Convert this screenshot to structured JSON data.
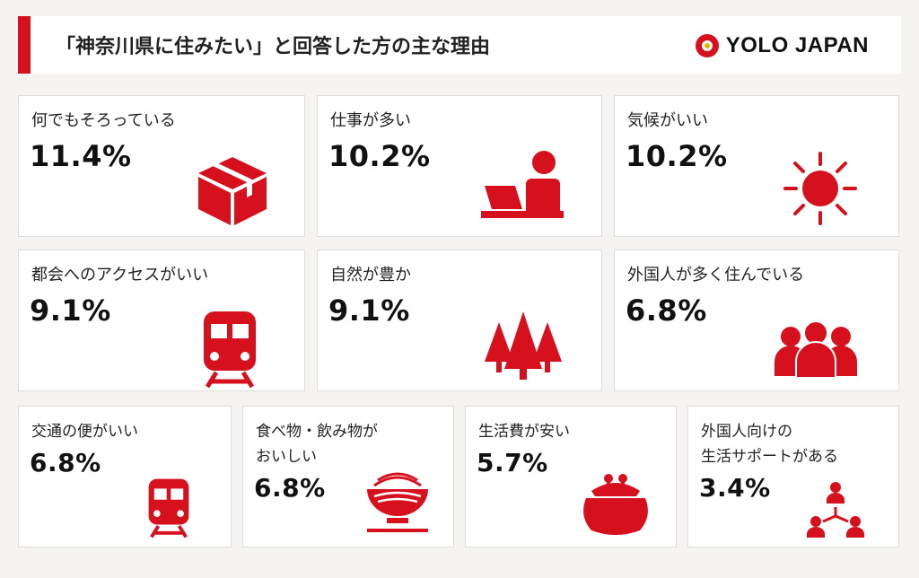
{
  "header": {
    "title": "「神奈川県に住みたい」と回答した方の主な理由",
    "logo_text": "YOLO JAPAN"
  },
  "colors": {
    "accent": "#d7101e",
    "card_bg": "#ffffff",
    "page_bg": "#f6f4f3"
  },
  "reasons": [
    {
      "label": "何でもそろっている",
      "value": "11.4%",
      "icon": "box-icon"
    },
    {
      "label": "仕事が多い",
      "value": "10.2%",
      "icon": "person-laptop-icon"
    },
    {
      "label": "気候がいい",
      "value": "10.2%",
      "icon": "sun-icon"
    },
    {
      "label": "都会へのアクセスがいい",
      "value": "9.1%",
      "icon": "train-icon"
    },
    {
      "label": "自然が豊か",
      "value": "9.1%",
      "icon": "trees-icon"
    },
    {
      "label": "外国人が多く住んでいる",
      "value": "6.8%",
      "icon": "people-group-icon"
    },
    {
      "label": "交通の便がいい",
      "value": "6.8%",
      "icon": "train-icon"
    },
    {
      "label_lines": [
        "食べ物・飲み物が",
        "おいしい"
      ],
      "value": "6.8%",
      "icon": "bowl-icon"
    },
    {
      "label": "生活費が安い",
      "value": "5.7%",
      "icon": "purse-icon"
    },
    {
      "label_lines": [
        "外国人向けの",
        "生活サポートがある"
      ],
      "value": "3.4%",
      "icon": "support-network-icon"
    }
  ]
}
